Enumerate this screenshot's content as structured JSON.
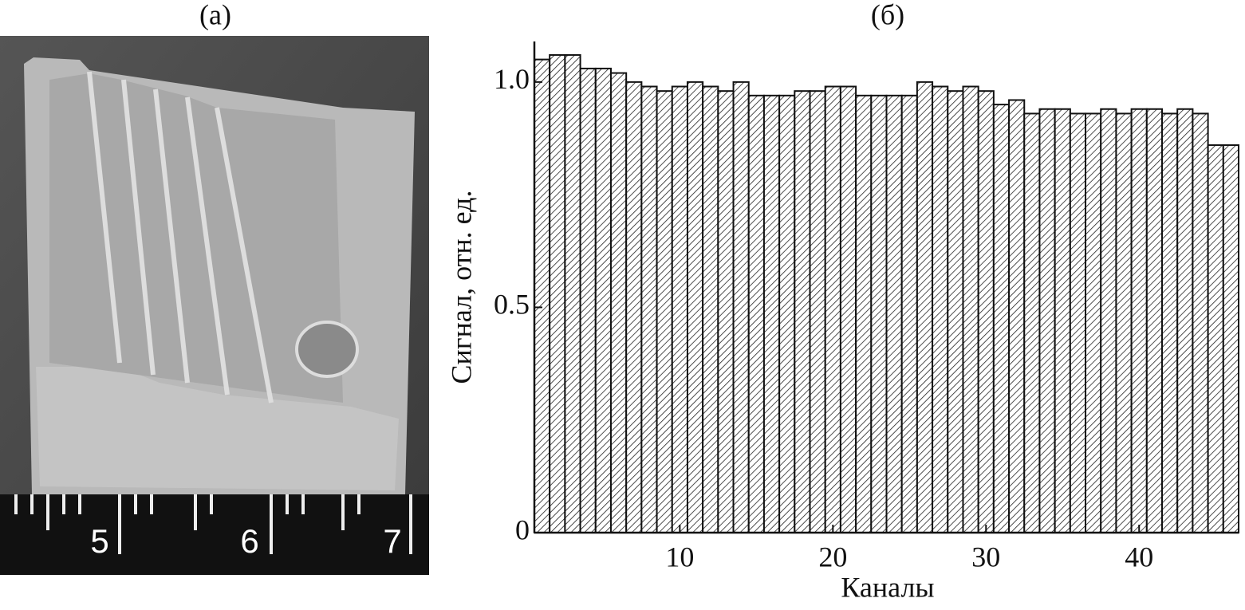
{
  "photo": {
    "label": "(a)",
    "ruler_labels": [
      "5",
      "6",
      "7"
    ]
  },
  "chart_data": {
    "type": "bar",
    "title": "(б)",
    "xlabel": "Каналы",
    "ylabel": "Сигнал, отн. ед.",
    "x": [
      1,
      2,
      3,
      4,
      5,
      6,
      7,
      8,
      9,
      10,
      11,
      12,
      13,
      14,
      15,
      16,
      17,
      18,
      19,
      20,
      21,
      22,
      23,
      24,
      25,
      26,
      27,
      28,
      29,
      30,
      31,
      32,
      33,
      34,
      35,
      36,
      37,
      38,
      39,
      40,
      41,
      42,
      43,
      44,
      45,
      46
    ],
    "values": [
      1.05,
      1.06,
      1.06,
      1.03,
      1.03,
      1.02,
      1.0,
      0.99,
      0.98,
      0.99,
      1.0,
      0.99,
      0.98,
      1.0,
      0.97,
      0.97,
      0.97,
      0.98,
      0.98,
      0.99,
      0.99,
      0.97,
      0.97,
      0.97,
      0.97,
      1.0,
      0.99,
      0.98,
      0.99,
      0.98,
      0.95,
      0.96,
      0.93,
      0.94,
      0.94,
      0.93,
      0.93,
      0.94,
      0.93,
      0.94,
      0.94,
      0.93,
      0.94,
      0.93,
      0.86,
      0.86
    ],
    "xlim": [
      0.5,
      46.5
    ],
    "xticks": [
      10,
      20,
      30,
      40
    ],
    "ylim": [
      0,
      1.09
    ],
    "yticks": [
      0,
      0.5,
      {
        "value": 1,
        "label": "1.0"
      }
    ],
    "color": "#ffffff"
  }
}
